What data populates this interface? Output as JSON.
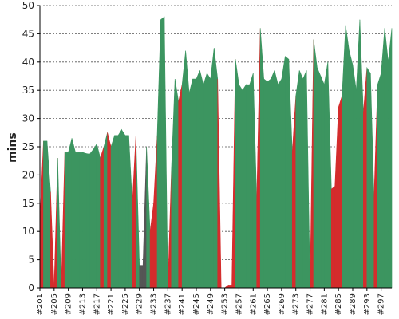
{
  "chart_data": {
    "type": "area",
    "ylabel": "mins",
    "ylim": [
      0,
      50
    ],
    "yticks": [
      0,
      5,
      10,
      15,
      20,
      25,
      30,
      35,
      40,
      45,
      50
    ],
    "grid": true,
    "x": [
      "#201",
      "#202",
      "#203",
      "#204",
      "#205",
      "#206",
      "#207",
      "#208",
      "#209",
      "#210",
      "#211",
      "#212",
      "#213",
      "#214",
      "#215",
      "#216",
      "#217",
      "#218",
      "#219",
      "#220",
      "#221",
      "#222",
      "#223",
      "#224",
      "#225",
      "#226",
      "#227",
      "#228",
      "#229",
      "#230",
      "#231",
      "#232",
      "#233",
      "#234",
      "#235",
      "#236",
      "#237",
      "#238",
      "#239",
      "#240",
      "#241",
      "#242",
      "#243",
      "#244",
      "#245",
      "#246",
      "#247",
      "#248",
      "#249",
      "#250",
      "#251",
      "#252",
      "#253",
      "#254",
      "#255",
      "#256",
      "#257",
      "#258",
      "#259",
      "#260",
      "#261",
      "#262",
      "#263",
      "#264",
      "#265",
      "#266",
      "#267",
      "#268",
      "#269",
      "#270",
      "#271",
      "#272",
      "#273",
      "#274",
      "#275",
      "#276",
      "#277",
      "#278",
      "#279",
      "#280",
      "#281",
      "#282",
      "#283",
      "#284",
      "#285",
      "#286",
      "#287",
      "#288",
      "#289",
      "#290",
      "#291",
      "#292",
      "#293",
      "#294",
      "#295",
      "#296",
      "#297",
      "#298",
      "#299",
      "#300"
    ],
    "xticks": [
      "#201",
      "#205",
      "#209",
      "#213",
      "#217",
      "#221",
      "#225",
      "#229",
      "#233",
      "#237",
      "#241",
      "#245",
      "#249",
      "#253",
      "#257",
      "#261",
      "#265",
      "#269",
      "#273",
      "#277",
      "#281",
      "#285",
      "#289",
      "#293",
      "#297"
    ],
    "values": [
      12,
      26,
      26,
      17,
      0,
      23,
      0,
      24,
      24,
      26.5,
      24,
      24,
      24,
      23.8,
      23.7,
      24.5,
      25.5,
      23,
      25,
      27.5,
      25,
      27,
      27,
      28,
      27,
      27,
      15,
      27,
      4,
      4,
      25,
      10,
      15,
      27,
      47.5,
      48,
      0,
      21,
      37,
      33,
      36,
      42,
      34.5,
      37,
      37,
      38.5,
      36,
      38,
      37,
      42.5,
      37,
      0,
      0,
      0.5,
      0.5,
      40.5,
      36,
      35,
      36,
      36,
      38,
      15.5,
      46,
      37,
      36.5,
      37,
      38.5,
      36,
      37,
      41,
      40.5,
      24,
      34,
      38.5,
      37,
      38.5,
      0,
      44,
      39,
      37.5,
      36,
      40,
      17.5,
      18,
      32,
      34,
      46.5,
      42,
      39.5,
      35,
      47.5,
      31,
      39,
      38,
      16,
      36,
      38,
      46,
      40,
      46
    ],
    "status": [
      "fail",
      "pass",
      "pass",
      "fail",
      "fail",
      "pass",
      "fail",
      "pass",
      "pass",
      "pass",
      "pass",
      "pass",
      "pass",
      "pass",
      "pass",
      "pass",
      "pass",
      "fail",
      "pass",
      "fail",
      "pass",
      "pass",
      "pass",
      "pass",
      "pass",
      "pass",
      "fail",
      "pass",
      "unstable",
      "unstable",
      "pass",
      "fail",
      "fail",
      "pass",
      "pass",
      "pass",
      "fail",
      "pass",
      "pass",
      "fail",
      "pass",
      "pass",
      "pass",
      "pass",
      "pass",
      "pass",
      "pass",
      "pass",
      "pass",
      "pass",
      "fail",
      "fail",
      "fail",
      "fail",
      "fail",
      "pass",
      "pass",
      "pass",
      "pass",
      "pass",
      "pass",
      "fail",
      "pass",
      "pass",
      "pass",
      "pass",
      "pass",
      "pass",
      "pass",
      "pass",
      "pass",
      "fail",
      "pass",
      "pass",
      "pass",
      "pass",
      "fail",
      "pass",
      "pass",
      "pass",
      "pass",
      "pass",
      "fail",
      "fail",
      "fail",
      "pass",
      "pass",
      "pass",
      "pass",
      "pass",
      "pass",
      "fail",
      "pass",
      "pass",
      "fail",
      "pass",
      "pass",
      "pass",
      "pass",
      "pass"
    ],
    "colors": {
      "pass": "#3c9560",
      "fail": "#d42c2c",
      "unstable": "#555555"
    }
  }
}
